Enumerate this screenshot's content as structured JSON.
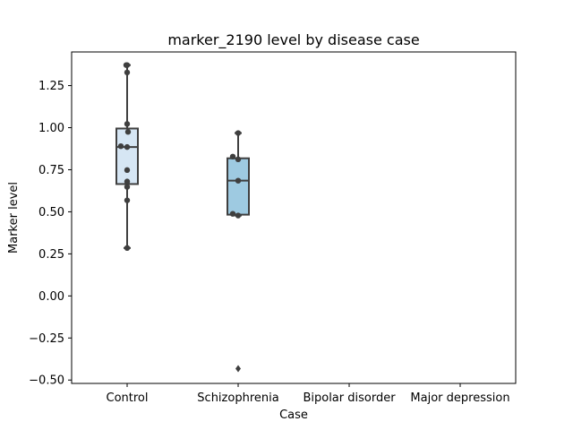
{
  "chart_data": {
    "type": "box",
    "title": "marker_2190 level by disease case",
    "xlabel": "Case",
    "ylabel": "Marker level",
    "categories": [
      "Control",
      "Schizophrenia",
      "Bipolar disorder",
      "Major depression"
    ],
    "ylim": [
      -0.52,
      1.45
    ],
    "yticks": [
      -0.5,
      -0.25,
      0.0,
      0.25,
      0.5,
      0.75,
      1.0,
      1.25
    ],
    "ytick_labels": [
      "−0.50",
      "−0.25",
      "0.00",
      "0.25",
      "0.50",
      "0.75",
      "1.00",
      "1.25"
    ],
    "box_color_control": "#d6e6f4",
    "box_color_schizophrenia": "#9ecae1",
    "edge_color": "#3f3f3f",
    "boxes": [
      {
        "category": "Control",
        "whisker_low": 0.285,
        "q1": 0.665,
        "median": 0.885,
        "q3": 0.995,
        "whisker_high": 1.372,
        "fliers": [],
        "points": [
          1.372,
          1.372,
          1.328,
          1.022,
          0.975,
          0.89,
          0.885,
          0.748,
          0.68,
          0.648,
          0.568,
          0.285
        ]
      },
      {
        "category": "Schizophrenia",
        "whisker_low": 0.478,
        "q1": 0.483,
        "median": 0.685,
        "q3": 0.818,
        "whisker_high": 0.968,
        "fliers": [
          -0.432
        ],
        "points": [
          0.968,
          0.828,
          0.812,
          0.685,
          0.488,
          0.478
        ]
      }
    ]
  }
}
